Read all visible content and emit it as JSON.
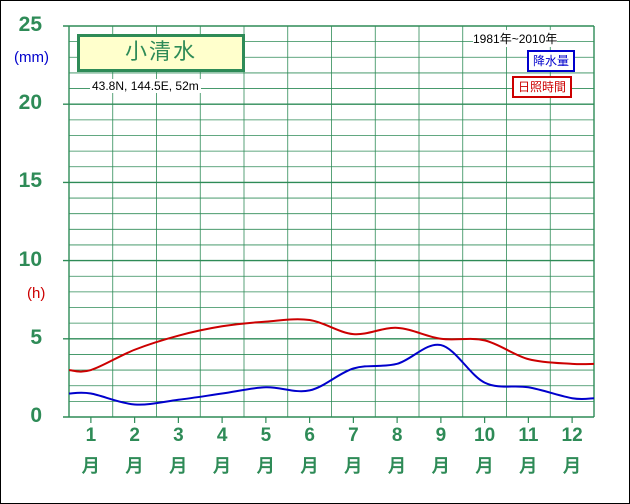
{
  "title": "小清水",
  "station_info": "43.8N,  144.5E,  52m",
  "period": "1981年~2010年",
  "colors": {
    "grid": "#2e8b57",
    "precip": "#0000cc",
    "sunshine": "#cc0000",
    "title_bg": "#ffffcc"
  },
  "y_unit_top": "(mm)",
  "y_unit_mid": "(h)",
  "month_suffix": "月",
  "chart_data": {
    "type": "line",
    "x": [
      "1",
      "2",
      "3",
      "4",
      "5",
      "6",
      "7",
      "8",
      "9",
      "10",
      "11",
      "12"
    ],
    "y_ticks": [
      "0",
      "5",
      "10",
      "15",
      "20",
      "25"
    ],
    "ylim": [
      0,
      25
    ],
    "grid": true,
    "legend_placement": "top-right",
    "series": [
      {
        "name": "降水量",
        "color": "#0000cc",
        "values": [
          1.5,
          0.8,
          1.1,
          1.5,
          1.9,
          1.7,
          3.1,
          3.4,
          4.6,
          2.2,
          1.9,
          1.2
        ]
      },
      {
        "name": "日照時間",
        "color": "#cc0000",
        "values": [
          3.0,
          4.3,
          5.2,
          5.8,
          6.1,
          6.2,
          5.3,
          5.7,
          5.0,
          4.9,
          3.7,
          3.4
        ]
      }
    ]
  }
}
